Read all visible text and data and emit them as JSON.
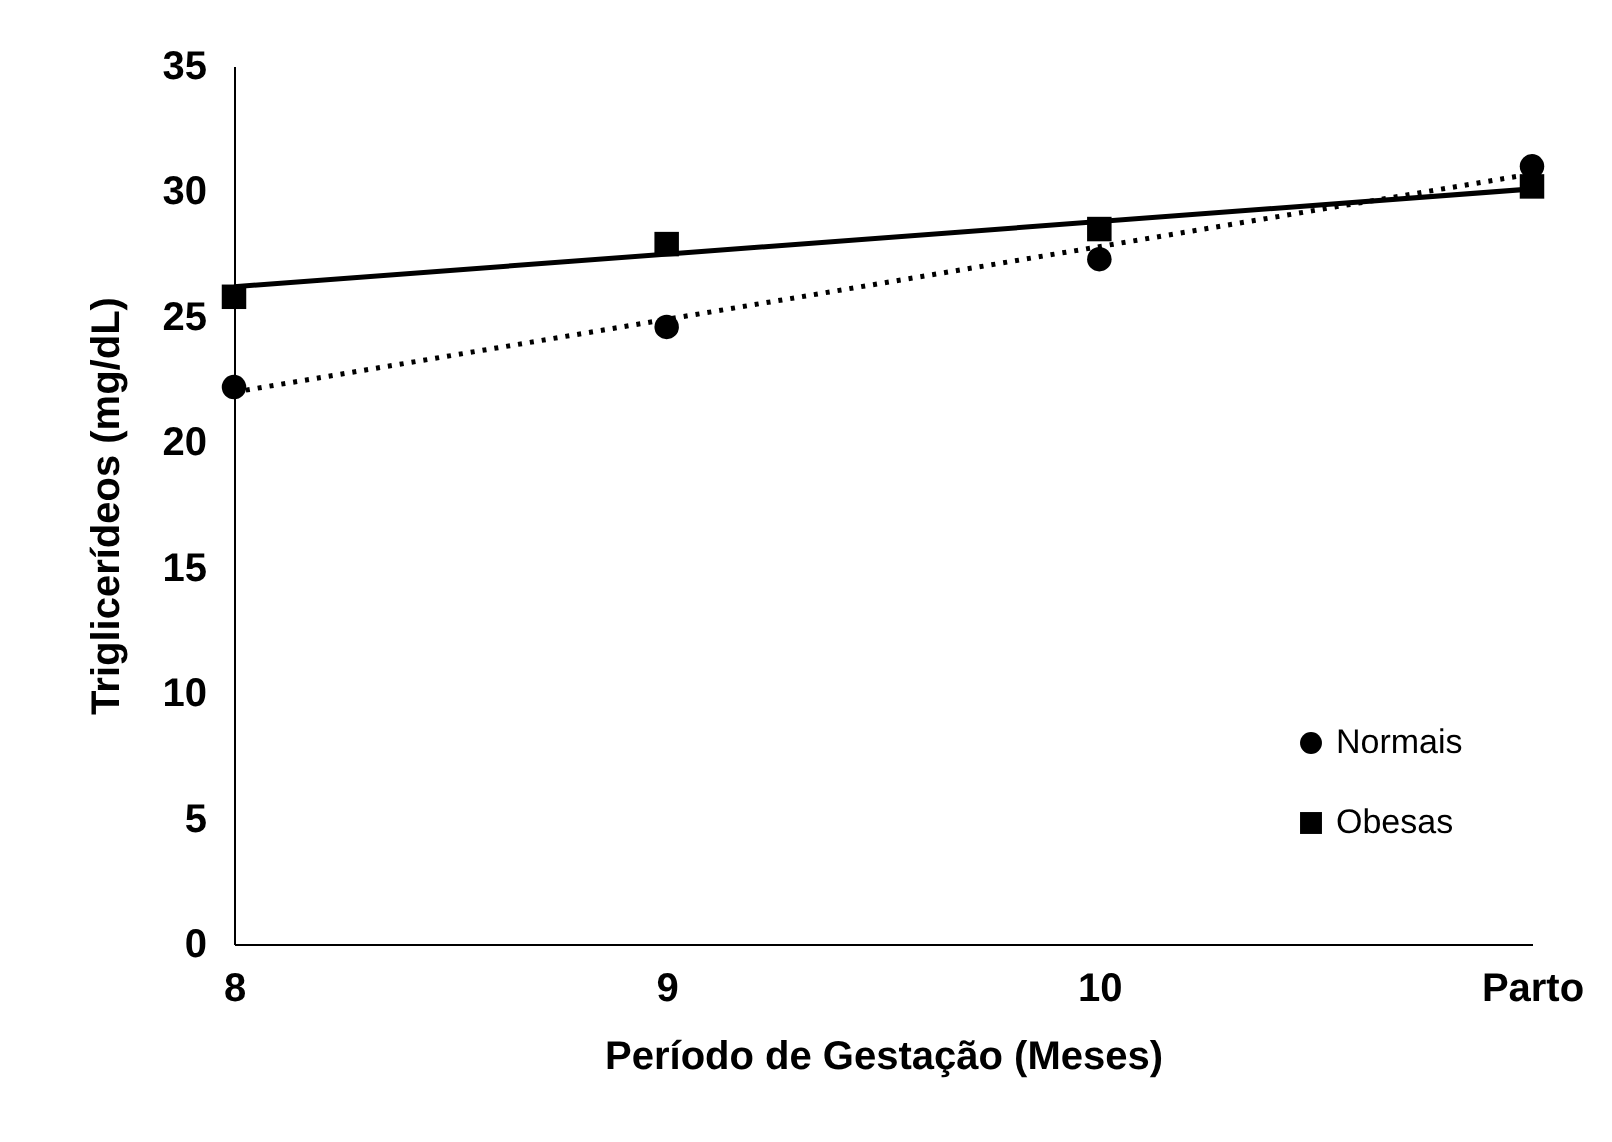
{
  "chart_data": {
    "type": "scatter",
    "xlabel": "Período de Gestação (Meses)",
    "ylabel": "Triglicerídeos (mg/dL)",
    "categories": [
      "8",
      "9",
      "10",
      "Parto"
    ],
    "series": [
      {
        "name": "Normais",
        "color": "#000000",
        "marker": "circle",
        "values": [
          22.2,
          24.6,
          27.3,
          31.0
        ]
      },
      {
        "name": "Obesas",
        "color": "#000000",
        "marker": "square",
        "values": [
          25.8,
          27.9,
          28.5,
          30.2
        ]
      },
      {
        "type": "line",
        "color": "#000000",
        "line_style": "dotted",
        "x": [
          "8",
          "Parto"
        ],
        "values": [
          22.0,
          30.7
        ]
      },
      {
        "type": "line",
        "color": "#000000",
        "line_style": "solid",
        "x": [
          "8",
          "Parto"
        ],
        "values": [
          26.2,
          30.1
        ]
      }
    ],
    "ylim": [
      0,
      35
    ],
    "yticks": [
      0,
      5,
      10,
      15,
      20,
      25,
      30,
      35
    ],
    "grid": false,
    "legend": "bottom right"
  }
}
